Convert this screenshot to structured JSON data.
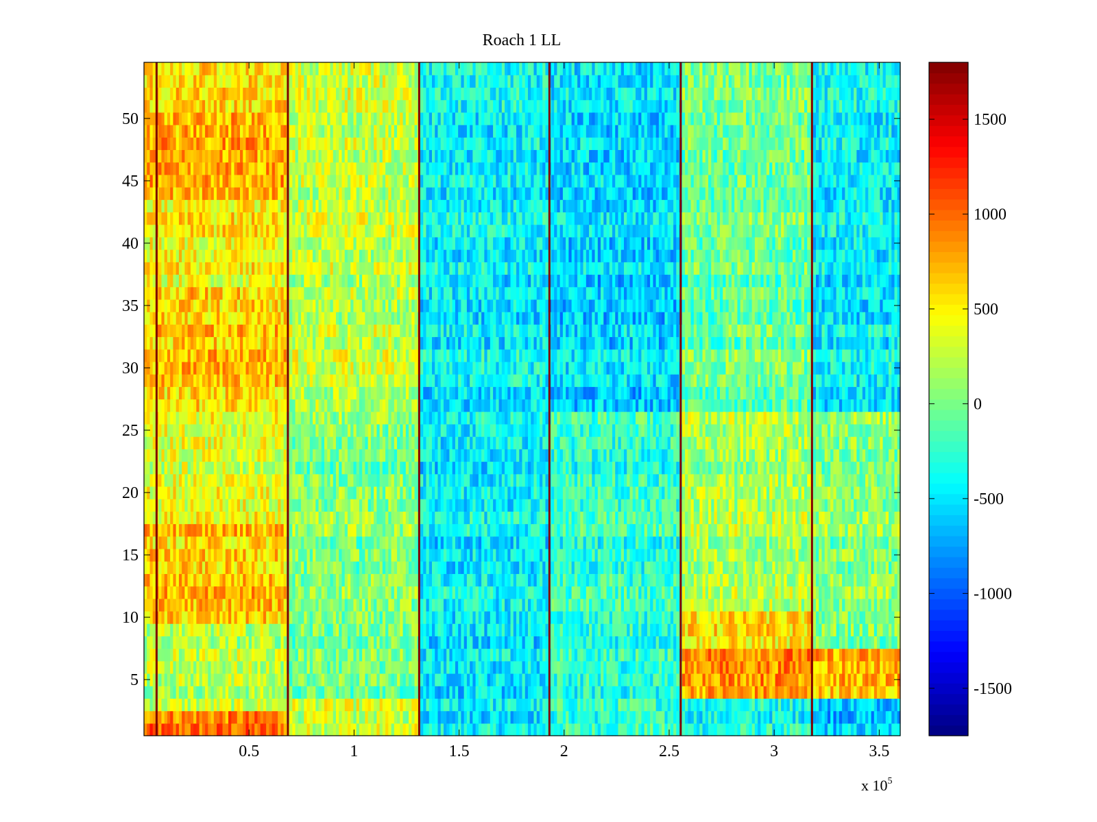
{
  "chart_data": {
    "type": "heatmap",
    "title": "Roach 1 LL",
    "xlabel": "",
    "ylabel": "",
    "x_range": [
      0,
      360000
    ],
    "y_range": [
      0.5,
      54.5
    ],
    "x_ticks": [
      50000,
      100000,
      150000,
      200000,
      250000,
      300000,
      350000
    ],
    "x_tick_labels": [
      "0.5",
      "1",
      "1.5",
      "2",
      "2.5",
      "3",
      "3.5"
    ],
    "x_exponent_label": {
      "prefix": "x 10",
      "exponent": "5"
    },
    "y_ticks": [
      5,
      10,
      15,
      20,
      25,
      30,
      35,
      40,
      45,
      50
    ],
    "y_tick_labels": [
      "5",
      "10",
      "15",
      "20",
      "25",
      "30",
      "35",
      "40",
      "45",
      "50"
    ],
    "colormap": "jet",
    "colorbar": {
      "range": [
        -1750,
        1800
      ],
      "ticks": [
        1500,
        1000,
        500,
        0,
        -500,
        -1000,
        -1500
      ],
      "tick_labels": [
        "1500",
        "1000",
        "500",
        "0",
        "-500",
        "-1000",
        "-1500"
      ]
    },
    "rows": 54,
    "segment_boundaries_x": [
      6000,
      68500,
      131000,
      193000,
      255500,
      318000
    ],
    "boundary_value": 1800,
    "mean_level_by_segment": [
      {
        "x_range": [
          0,
          68500
        ],
        "row_bands": [
          {
            "rows": [
              1,
              2
            ],
            "value": 950
          },
          {
            "rows": [
              3,
              9
            ],
            "value": 250
          },
          {
            "rows": [
              10,
              17
            ],
            "value": 650
          },
          {
            "rows": [
              18,
              26
            ],
            "value": 380
          },
          {
            "rows": [
              27,
              36
            ],
            "value": 650
          },
          {
            "rows": [
              37,
              43
            ],
            "value": 480
          },
          {
            "rows": [
              44,
              50
            ],
            "value": 750
          },
          {
            "rows": [
              51,
              54
            ],
            "value": 500
          }
        ]
      },
      {
        "x_range": [
          68500,
          131000
        ],
        "row_bands": [
          {
            "rows": [
              1,
              3
            ],
            "value": 300
          },
          {
            "rows": [
              4,
              26
            ],
            "value": 30
          },
          {
            "rows": [
              27,
              54
            ],
            "value": 250
          }
        ]
      },
      {
        "x_range": [
          131000,
          193000
        ],
        "row_bands": [
          {
            "rows": [
              1,
              54
            ],
            "value": -450
          }
        ]
      },
      {
        "x_range": [
          193000,
          255500
        ],
        "row_bands": [
          {
            "rows": [
              1,
              26
            ],
            "value": -250
          },
          {
            "rows": [
              27,
              54
            ],
            "value": -550
          }
        ]
      },
      {
        "x_range": [
          255500,
          318000
        ],
        "row_bands": [
          {
            "rows": [
              1,
              3
            ],
            "value": -350
          },
          {
            "rows": [
              4,
              7
            ],
            "value": 900
          },
          {
            "rows": [
              8,
              10
            ],
            "value": 600
          },
          {
            "rows": [
              11,
              26
            ],
            "value": 180
          },
          {
            "rows": [
              27,
              54
            ],
            "value": -50
          }
        ]
      },
      {
        "x_range": [
          318000,
          360000
        ],
        "row_bands": [
          {
            "rows": [
              1,
              3
            ],
            "value": -600
          },
          {
            "rows": [
              4,
              7
            ],
            "value": 750
          },
          {
            "rows": [
              8,
              26
            ],
            "value": 50
          },
          {
            "rows": [
              27,
              54
            ],
            "value": -450
          }
        ]
      }
    ]
  }
}
